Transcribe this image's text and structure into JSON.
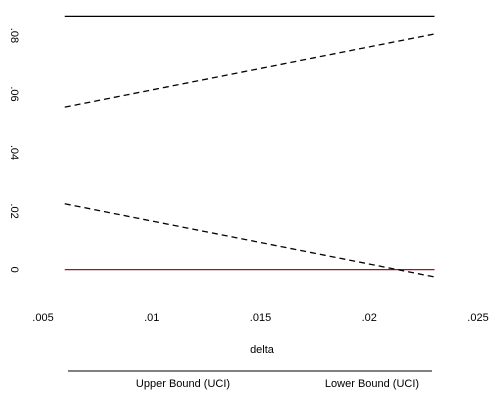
{
  "chart_data": {
    "type": "line",
    "xlabel": "delta",
    "ylabel": "",
    "xlim": [
      0.005,
      0.025
    ],
    "ylim": [
      -0.009,
      0.088
    ],
    "x_ticks": [
      {
        "value": 0.005,
        "label": ".005"
      },
      {
        "value": 0.01,
        "label": ".01"
      },
      {
        "value": 0.015,
        "label": ".015"
      },
      {
        "value": 0.02,
        "label": ".02"
      },
      {
        "value": 0.025,
        "label": ".025"
      }
    ],
    "y_ticks": [
      {
        "value": 0,
        "label": "0"
      },
      {
        "value": 0.02,
        "label": ".02"
      },
      {
        "value": 0.04,
        "label": ".04"
      },
      {
        "value": 0.06,
        "label": ".06"
      },
      {
        "value": 0.08,
        "label": ".08"
      }
    ],
    "grid": false,
    "legend_position": "bottom",
    "series": [
      {
        "name": "Upper Bound (UCI)",
        "style": "dashed",
        "color": "#000000",
        "x": [
          0.006,
          0.023
        ],
        "y": [
          0.0555,
          0.0805
        ]
      },
      {
        "name": "Lower Bound (UCI)",
        "style": "dashed",
        "color": "#000000",
        "x": [
          0.006,
          0.023
        ],
        "y": [
          0.0225,
          -0.0025
        ]
      }
    ],
    "reference_lines": [
      {
        "y": 0,
        "color": "#a0132a",
        "style": "solid",
        "x": [
          0.006,
          0.023
        ]
      },
      {
        "y": 0.0865,
        "color": "#000000",
        "style": "solid",
        "x": [
          0.006,
          0.023
        ]
      }
    ]
  }
}
